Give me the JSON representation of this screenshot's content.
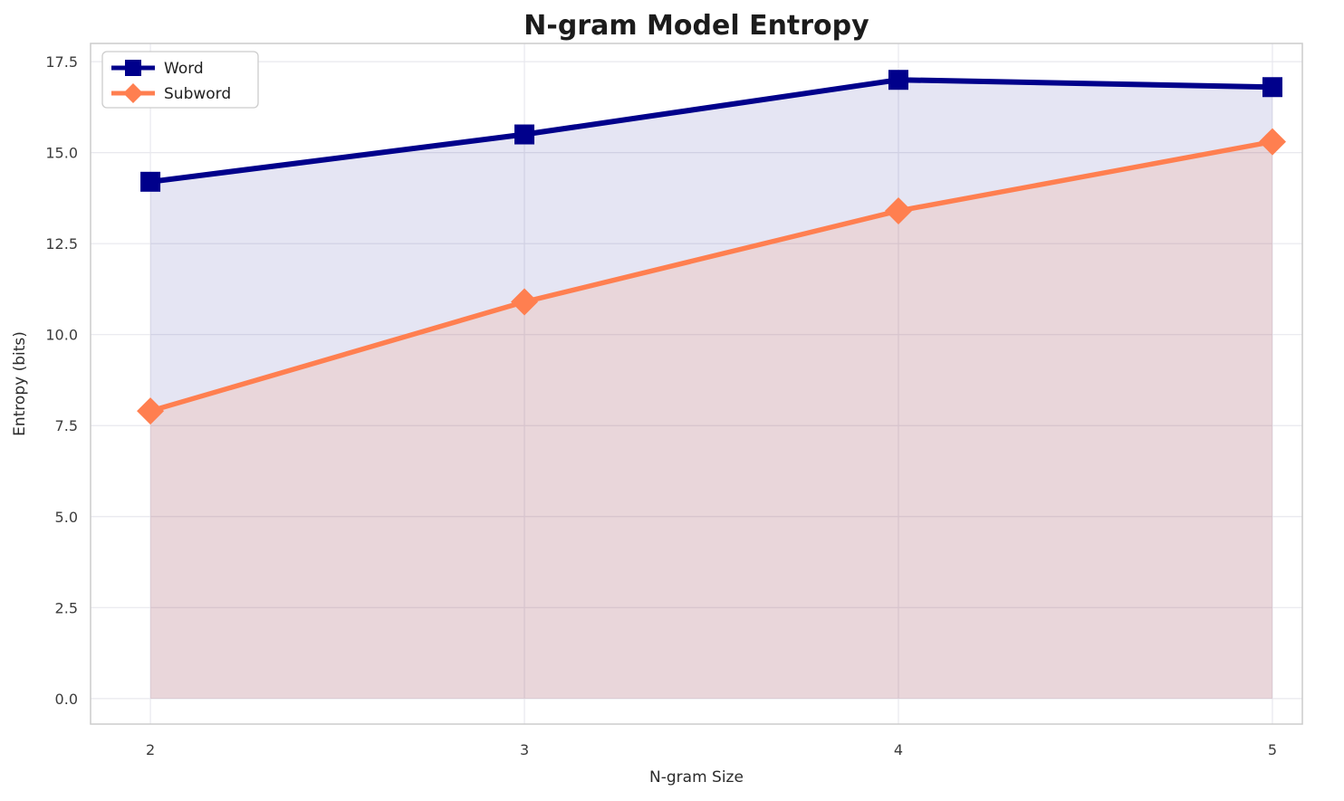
{
  "chart_data": {
    "type": "line",
    "title": "N-gram Model Entropy",
    "xlabel": "N-gram Size",
    "ylabel": "Entropy (bits)",
    "x": [
      2,
      3,
      4,
      5
    ],
    "series": [
      {
        "name": "Word",
        "values": [
          14.2,
          15.5,
          17.0,
          16.8
        ],
        "color": "#00008B",
        "marker": "square",
        "line_width": 6,
        "fill": true,
        "fill_opacity": 0.1
      },
      {
        "name": "Subword",
        "values": [
          7.9,
          10.9,
          13.4,
          15.3
        ],
        "color": "#FF7F50",
        "marker": "diamond",
        "line_width": 5.5,
        "fill": true,
        "fill_opacity": 0.15
      }
    ],
    "xticks": [
      2,
      3,
      4,
      5
    ],
    "xticklabels": [
      "2",
      "3",
      "4",
      "5"
    ],
    "yticks": [
      0.0,
      2.5,
      5.0,
      7.5,
      10.0,
      12.5,
      15.0,
      17.5
    ],
    "yticklabels": [
      "0.0",
      "2.5",
      "5.0",
      "7.5",
      "10.0",
      "12.5",
      "15.0",
      "17.5"
    ],
    "xlim": [
      1.84,
      5.08
    ],
    "ylim": [
      -0.7,
      18.0
    ],
    "grid": true,
    "legend_position": "upper left",
    "colors": {
      "grid": "#e8e8ee",
      "spine": "#cccccc",
      "background": "#ffffff"
    }
  }
}
